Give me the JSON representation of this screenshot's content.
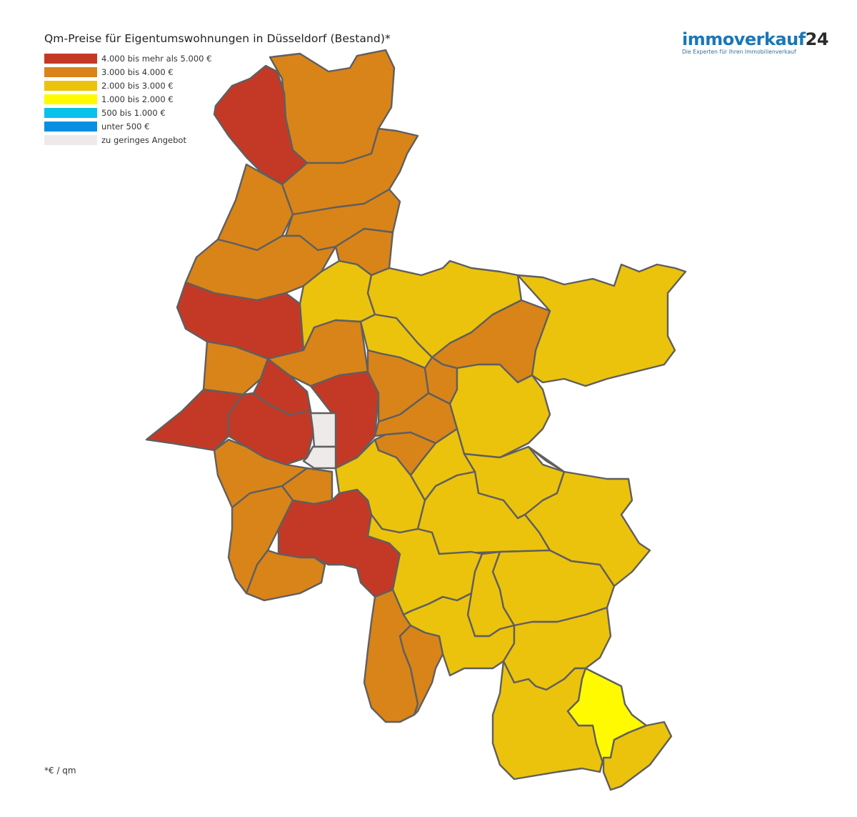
{
  "title": "Qm-Preise für Eigentumswohnungen in Düsseldorf (Bestand)*",
  "logo": {
    "main_a": "immoverkauf",
    "main_b": "24",
    "tagline": "Die Experten für Ihren Immobilienverkauf"
  },
  "legend": [
    {
      "label": "4.000 bis mehr als 5.000 €",
      "color": "#c43926"
    },
    {
      "label": "3.000 bis 4.000 €",
      "color": "#d98419"
    },
    {
      "label": "2.000 bis 3.000 €",
      "color": "#ecc30c"
    },
    {
      "label": "1.000 bis 2.000 €",
      "color": "#fffa00"
    },
    {
      "label": "500 bis 1.000 €",
      "color": "#09c1ea"
    },
    {
      "label": "unter 500 €",
      "color": "#0a8fe0"
    },
    {
      "label": "zu geringes Angebot",
      "color": "#eeeaea"
    }
  ],
  "footnote": "*€ / qm",
  "map": {
    "city": "Düsseldorf",
    "districts_by_category": {
      "4.000 bis mehr als 5.000 €": 8,
      "3.000 bis 4.000 €": 15,
      "2.000 bis 3.000 €": 24,
      "1.000 bis 2.000 €": 1,
      "zu geringes Angebot": 2
    }
  }
}
